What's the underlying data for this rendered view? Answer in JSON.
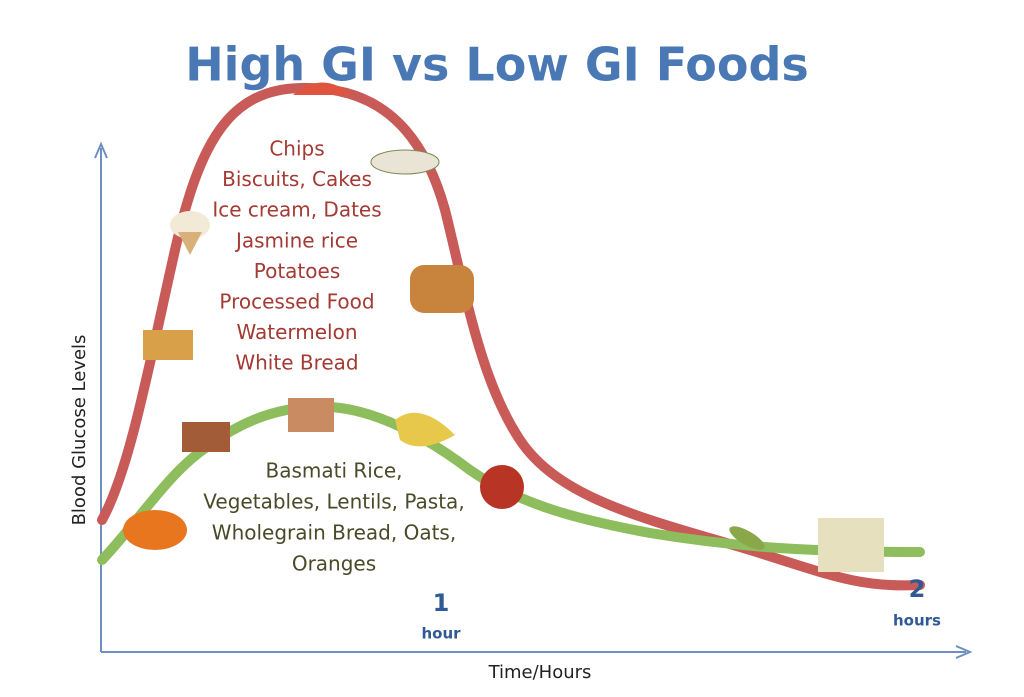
{
  "title": "High GI vs Low GI Foods",
  "y_axis_label": "Blood Glucose Levels",
  "x_axis_label": "Time/Hours",
  "high_gi_foods": [
    "Chips",
    "Biscuits, Cakes",
    "Ice cream, Dates",
    "Jasmine rice",
    "Potatoes",
    "Processed Food",
    "Watermelon",
    "White Bread"
  ],
  "low_gi_foods": [
    "Basmati Rice,",
    "Vegetables, Lentils, Pasta,",
    "Wholegrain Bread, Oats,",
    "Oranges"
  ],
  "time_marks": [
    {
      "number": "1",
      "unit": "hour"
    },
    {
      "number": "2",
      "unit": "hours"
    }
  ]
}
